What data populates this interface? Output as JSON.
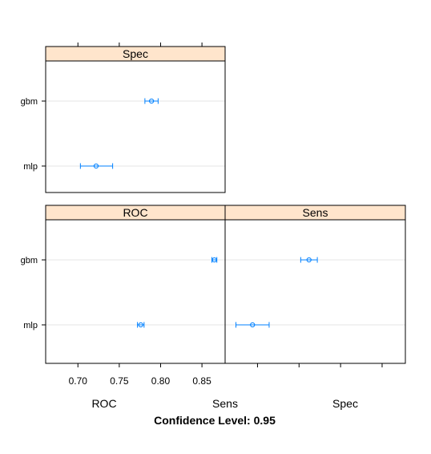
{
  "chart_data": {
    "type": "dotplot-with-error-bars",
    "title": "",
    "xlabel": "Confidence Level: 0.95",
    "axis_metric_labels": [
      "ROC",
      "Sens",
      "Spec"
    ],
    "x_ticks": [
      "0.70",
      "0.75",
      "0.80",
      "0.85"
    ],
    "xlim": [
      0.661,
      0.878
    ],
    "models": [
      "gbm",
      "mlp"
    ],
    "panels": [
      {
        "name": "Spec",
        "points": [
          {
            "model": "gbm",
            "estimate": 0.789,
            "lower": 0.781,
            "upper": 0.797
          },
          {
            "model": "mlp",
            "estimate": 0.722,
            "lower": 0.703,
            "upper": 0.742
          }
        ]
      },
      {
        "name": "ROC",
        "points": [
          {
            "model": "gbm",
            "estimate": 0.865,
            "lower": 0.862,
            "upper": 0.868
          },
          {
            "model": "mlp",
            "estimate": 0.776,
            "lower": 0.772,
            "upper": 0.78
          }
        ]
      },
      {
        "name": "Sens",
        "points": [
          {
            "model": "gbm",
            "estimate": 0.762,
            "lower": 0.752,
            "upper": 0.772
          },
          {
            "model": "mlp",
            "estimate": 0.694,
            "lower": 0.674,
            "upper": 0.714
          }
        ]
      }
    ],
    "grid": true,
    "colors": {
      "strip": "#ffe5cc",
      "series": "#0080ff",
      "gridline": "#e6e6e6",
      "frame": "#000000"
    }
  }
}
